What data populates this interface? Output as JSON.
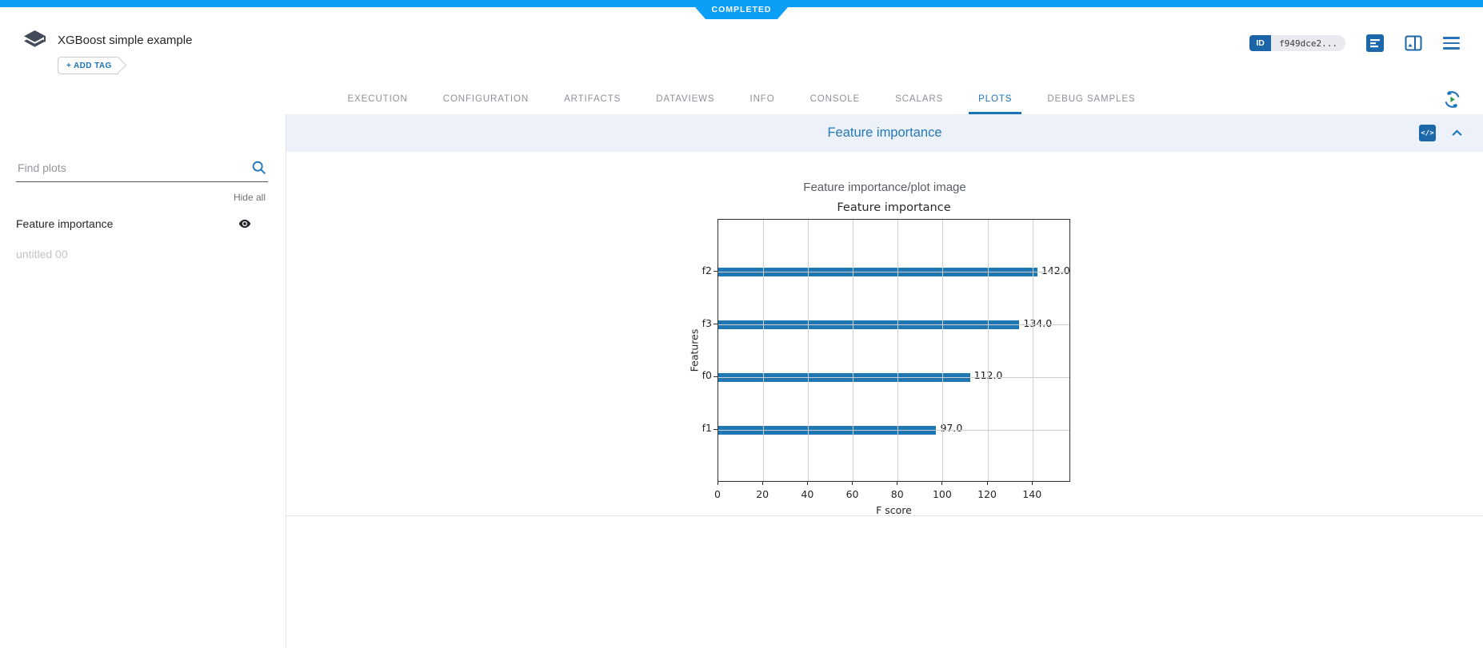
{
  "app": {
    "status_banner": "COMPLETED"
  },
  "header": {
    "title": "XGBoost simple example",
    "add_tag_label": "+ ADD TAG",
    "id_badge": {
      "label": "ID",
      "value": "f949dce2..."
    }
  },
  "tabs": {
    "items": [
      "EXECUTION",
      "CONFIGURATION",
      "ARTIFACTS",
      "DATAVIEWS",
      "INFO",
      "CONSOLE",
      "SCALARS",
      "PLOTS",
      "DEBUG SAMPLES"
    ],
    "active": "PLOTS"
  },
  "sidebar": {
    "search_placeholder": "Find plots",
    "hide_all_label": "Hide all",
    "plots": [
      {
        "label": "Feature importance",
        "visible": true
      },
      {
        "label": "untitled 00",
        "visible": false
      }
    ]
  },
  "plot_group": {
    "title": "Feature importance"
  },
  "chart_data": {
    "type": "bar",
    "orientation": "horizontal",
    "outer_title": "Feature importance/plot image",
    "title": "Feature importance",
    "categories": [
      "f2",
      "f3",
      "f0",
      "f1"
    ],
    "values": [
      142.0,
      134.0,
      112.0,
      97.0
    ],
    "value_labels": [
      "142.0",
      "134.0",
      "112.0",
      "97.0"
    ],
    "xlabel": "F score",
    "ylabel": "Features",
    "xlim": [
      0,
      157
    ],
    "xticks": [
      0,
      20,
      40,
      60,
      80,
      100,
      120,
      140
    ],
    "grid": true,
    "legend_position": "none",
    "bar_color": "#1f77b4",
    "grid_color": "#cfcfcf"
  },
  "colors": {
    "topbar_blue": "#0d9ff5",
    "accent_blue": "#1a73b8",
    "icon_blue": "#1b67a9",
    "band_bg": "#edf1f9",
    "bar_blue": "#1f77b4"
  }
}
